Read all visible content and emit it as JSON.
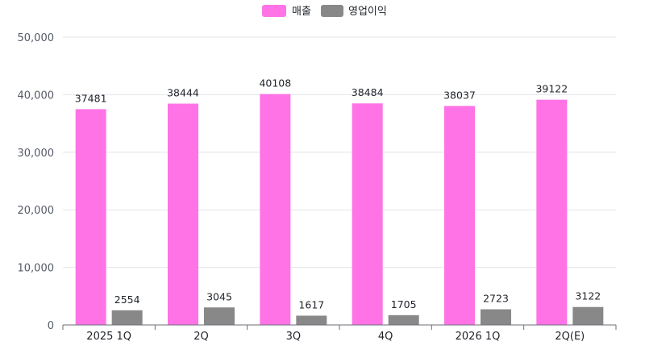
{
  "chart_data": {
    "type": "bar",
    "categories": [
      "2025 1Q",
      "2Q",
      "3Q",
      "4Q",
      "2026 1Q",
      "2Q(E)"
    ],
    "series": [
      {
        "name": "매출",
        "color": "#ff73e6",
        "values": [
          37481,
          38444,
          40108,
          38484,
          38037,
          39122
        ]
      },
      {
        "name": "영업이익",
        "color": "#888888",
        "values": [
          2554,
          3045,
          1617,
          1705,
          2723,
          3122
        ]
      }
    ],
    "ylim": [
      0,
      50000
    ],
    "yticks": [
      0,
      10000,
      20000,
      30000,
      40000,
      50000
    ],
    "ytick_labels": [
      "0",
      "10,000",
      "20,000",
      "30,000",
      "40,000",
      "50,000"
    ],
    "grid": true,
    "legend": "top-center",
    "show_data_labels": true
  }
}
